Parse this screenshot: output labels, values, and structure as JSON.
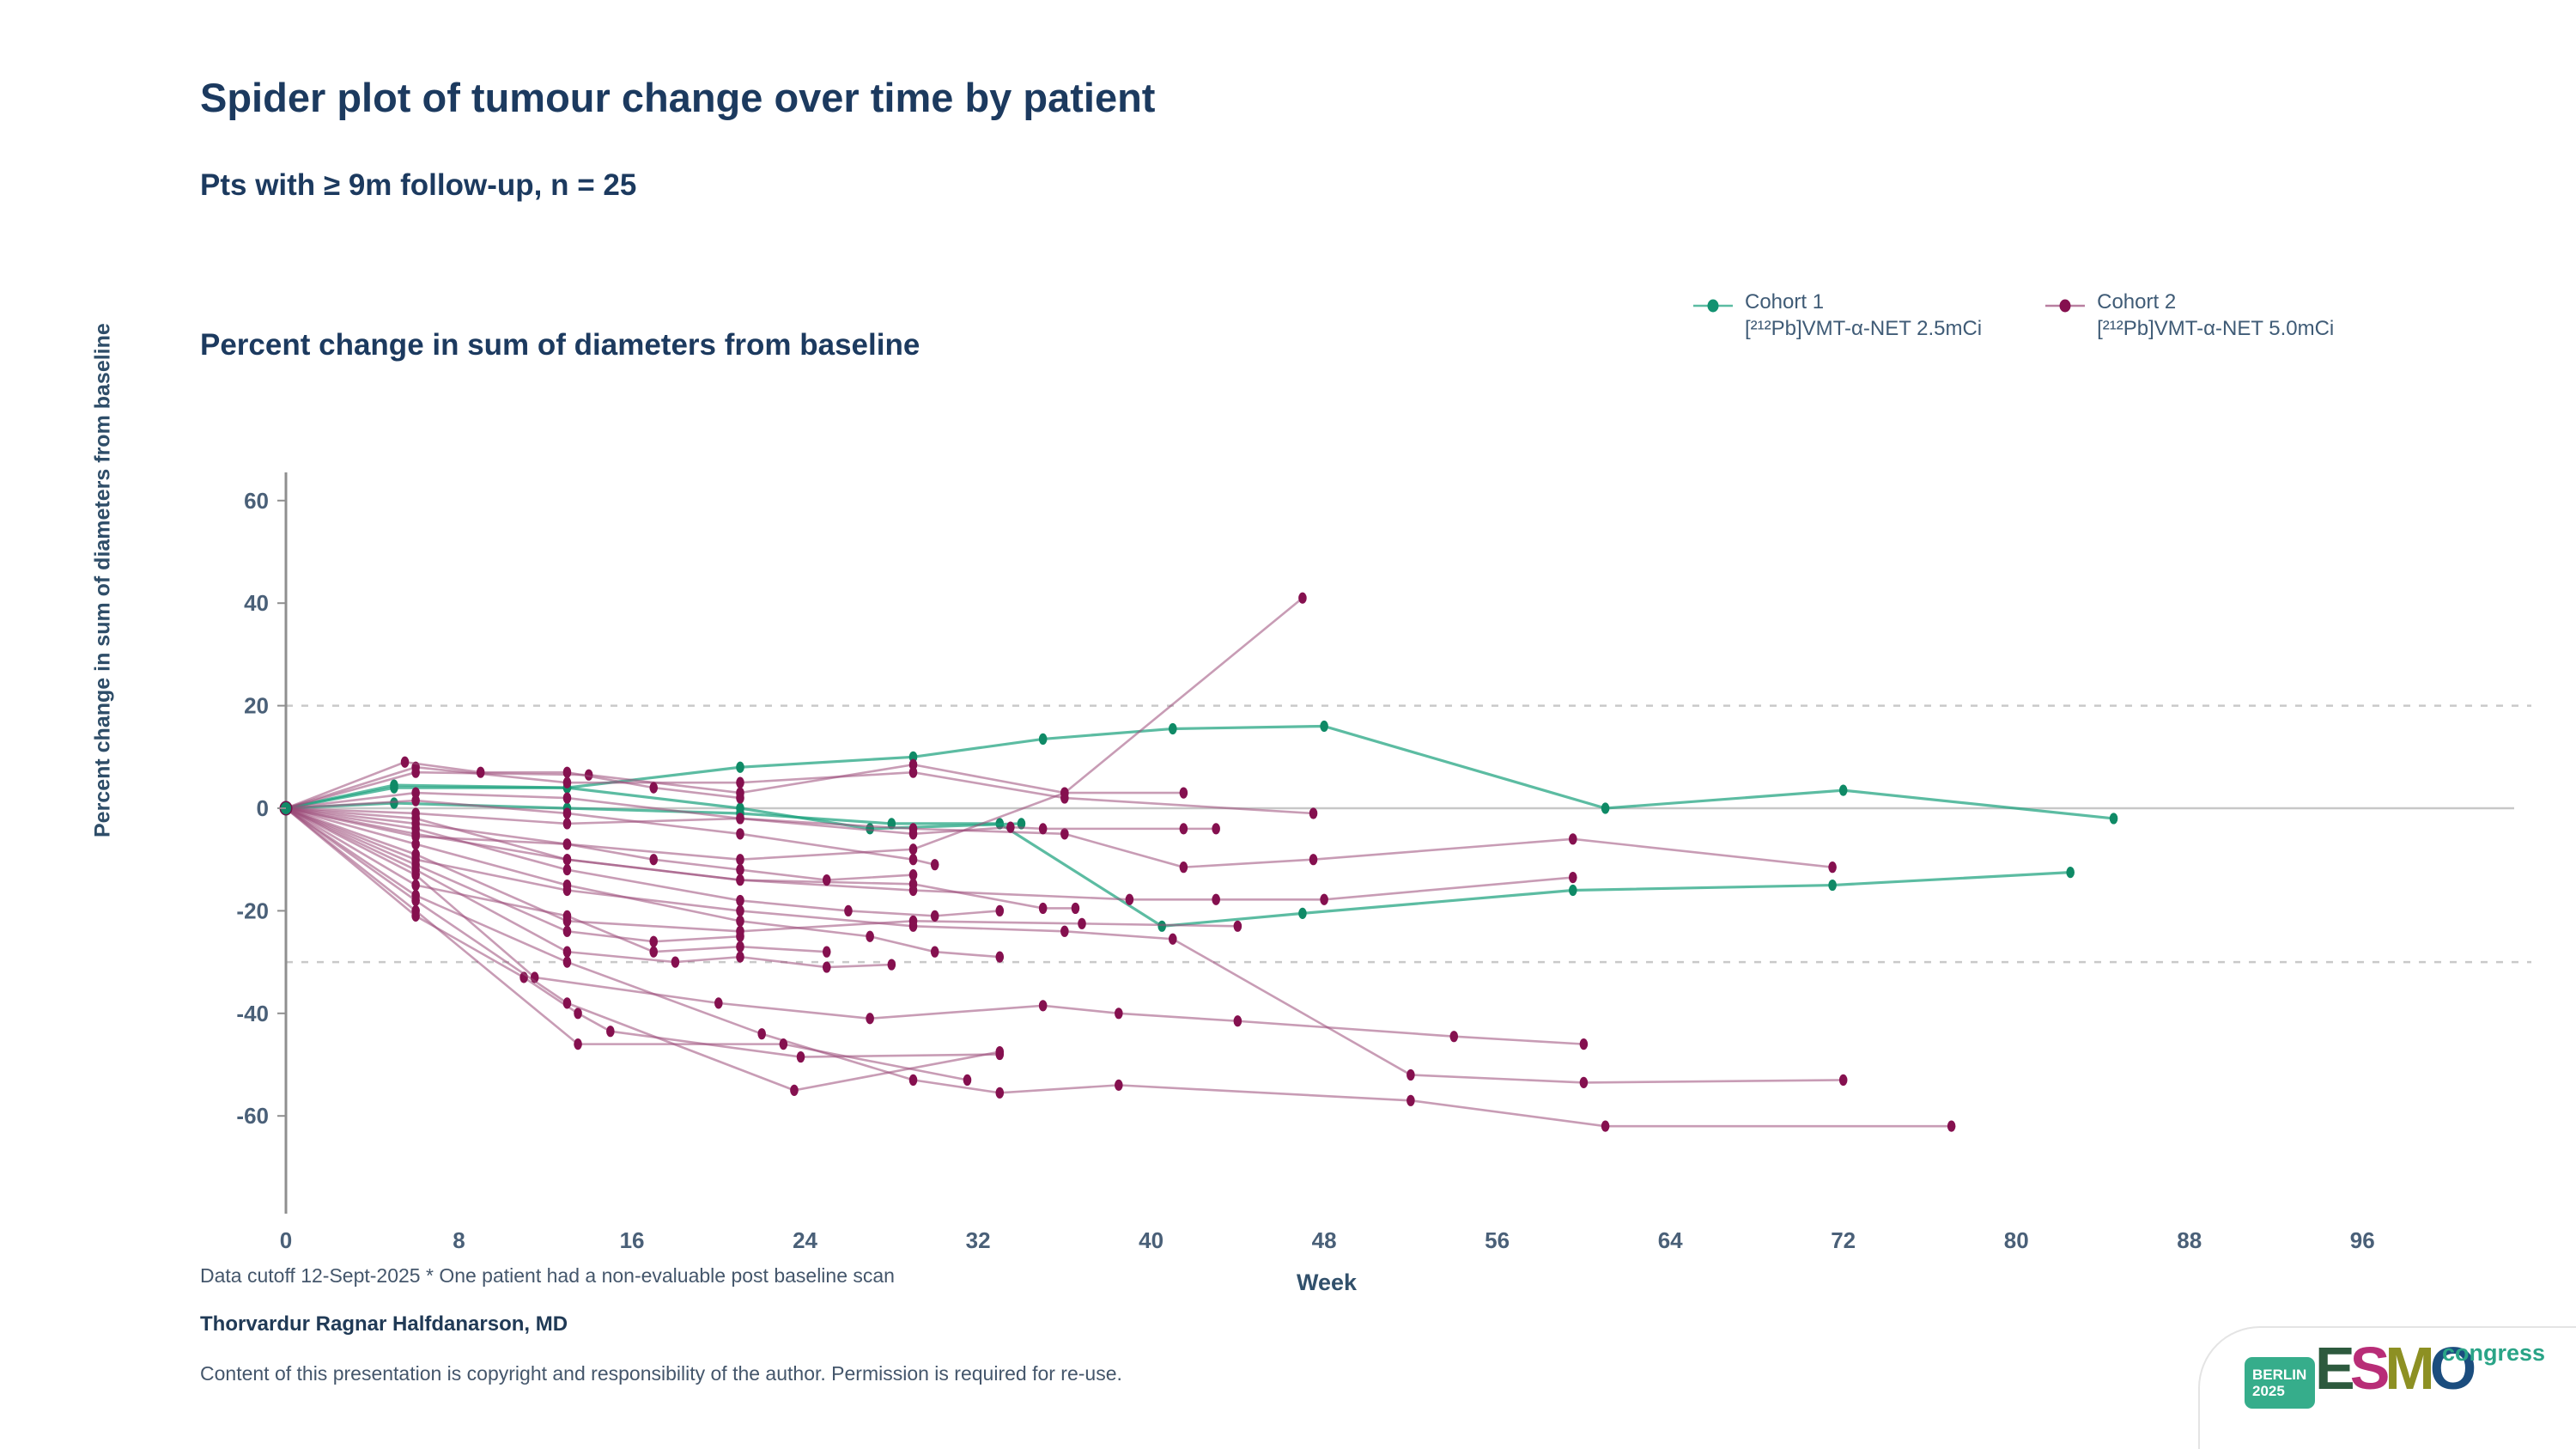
{
  "slide": {
    "title": "Spider plot of tumour change over time by patient",
    "subtitle": "Pts with ≥ 9m follow-up, n = 25",
    "chart_heading": "Percent change in sum of diameters from baseline",
    "footnote": "Data cutoff 12-Sept-2025 * One patient had a non-evaluable post baseline scan",
    "author": "Thorvardur Ragnar Halfdanarson, MD",
    "copyright": "Content of this presentation is copyright and responsibility of the author. Permission is required for re-use."
  },
  "legend": {
    "items": [
      {
        "name": "Cohort 1",
        "treatment": "[²¹²Pb]VMT-α-NET 2.5mCi",
        "color": "#16a07b"
      },
      {
        "name": "Cohort 2",
        "treatment": "[²¹²Pb]VMT-α-NET 5.0mCi",
        "color": "#8b1253"
      }
    ]
  },
  "logo": {
    "venue": "BERLIN",
    "year": "2025",
    "org": "ESMO",
    "letter_colors": [
      "#2d5a3e",
      "#b82d77",
      "#8d9023",
      "#1b4d7e"
    ],
    "suffix": "congress"
  },
  "chart_data": {
    "type": "line",
    "variant": "spider-plot",
    "title": "Percent change in sum of diameters from baseline",
    "xlabel": "Week",
    "ylabel": "Percent change in sum of diameters from baseline",
    "xlim": [
      0,
      98
    ],
    "ylim": [
      -75,
      65
    ],
    "xticks": [
      0,
      8,
      16,
      24,
      32,
      40,
      48,
      56,
      64,
      72,
      80,
      88,
      96
    ],
    "yticks": [
      60,
      40,
      20,
      0,
      -20,
      -40,
      -60
    ],
    "grid": "threshold-dashes-only",
    "thresholds": [
      20,
      -30
    ],
    "zero_line": 0,
    "legend_position": "top-right",
    "colors": {
      "cohort1_line": "#17a07b",
      "cohort1_point": "#0f8a66",
      "cohort2_line": "#9b4a79",
      "cohort2_point": "#85104f"
    },
    "series": [
      {
        "id": "C1-P1",
        "cohort": 1,
        "points": [
          [
            0,
            0
          ],
          [
            5,
            4
          ],
          [
            13,
            4
          ],
          [
            21,
            8
          ],
          [
            29,
            10
          ],
          [
            35,
            13.5
          ],
          [
            41,
            15.5
          ],
          [
            48,
            16
          ],
          [
            61,
            0
          ],
          [
            72,
            3.5
          ],
          [
            84.5,
            -2
          ]
        ]
      },
      {
        "id": "C1-P2",
        "cohort": 1,
        "points": [
          [
            0,
            0
          ],
          [
            5,
            1
          ],
          [
            13,
            0
          ],
          [
            21,
            -1
          ],
          [
            28,
            -3
          ],
          [
            33,
            -3
          ],
          [
            40.5,
            -23
          ],
          [
            47,
            -20.5
          ],
          [
            59.5,
            -16
          ],
          [
            71.5,
            -15
          ],
          [
            82.5,
            -12.5
          ]
        ]
      },
      {
        "id": "C1-P3",
        "cohort": 1,
        "points": [
          [
            0,
            0
          ],
          [
            5,
            4.5
          ],
          [
            13,
            4
          ],
          [
            21,
            0
          ],
          [
            27,
            -4
          ],
          [
            34,
            -3
          ]
        ]
      },
      {
        "id": "C2-P1",
        "cohort": 2,
        "points": [
          [
            0,
            0
          ],
          [
            6,
            -3
          ],
          [
            13,
            -7
          ],
          [
            21,
            -10
          ],
          [
            29,
            -8
          ],
          [
            36,
            3
          ],
          [
            47,
            41
          ]
        ]
      },
      {
        "id": "C2-P2",
        "cohort": 2,
        "points": [
          [
            0,
            0
          ],
          [
            6,
            7
          ],
          [
            14,
            6.5
          ],
          [
            21,
            3
          ],
          [
            29,
            8.5
          ],
          [
            36,
            3
          ],
          [
            41.5,
            3
          ]
        ]
      },
      {
        "id": "C2-P3",
        "cohort": 2,
        "points": [
          [
            0,
            0
          ],
          [
            6,
            8
          ],
          [
            13,
            5
          ],
          [
            21,
            5
          ],
          [
            29,
            7
          ],
          [
            36,
            2
          ],
          [
            47.5,
            -1
          ]
        ]
      },
      {
        "id": "C2-P4",
        "cohort": 2,
        "points": [
          [
            0,
            0
          ],
          [
            6,
            -1
          ],
          [
            13,
            -3
          ],
          [
            21,
            -2
          ],
          [
            29,
            -4
          ],
          [
            36,
            -5
          ],
          [
            41.5,
            -11.5
          ],
          [
            47.5,
            -10
          ],
          [
            59.5,
            -6
          ],
          [
            71.5,
            -11.5
          ]
        ]
      },
      {
        "id": "C2-P5",
        "cohort": 2,
        "points": [
          [
            0,
            0
          ],
          [
            6,
            -5
          ],
          [
            13,
            -10
          ],
          [
            21,
            -14
          ],
          [
            29,
            -16
          ],
          [
            39,
            -17.8
          ],
          [
            43,
            -17.8
          ],
          [
            48,
            -17.8
          ],
          [
            59.5,
            -13.5
          ]
        ]
      },
      {
        "id": "C2-P6",
        "cohort": 2,
        "points": [
          [
            0,
            0
          ],
          [
            6,
            -13
          ],
          [
            11.5,
            -33
          ],
          [
            20,
            -38
          ],
          [
            27,
            -41
          ],
          [
            35,
            -38.5
          ],
          [
            38.5,
            -40
          ],
          [
            44,
            -41.5
          ],
          [
            54,
            -44.5
          ],
          [
            60,
            -46
          ]
        ]
      },
      {
        "id": "C2-P7",
        "cohort": 2,
        "points": [
          [
            0,
            0
          ],
          [
            6,
            -17
          ],
          [
            13,
            -30
          ],
          [
            22,
            -44
          ],
          [
            29,
            -53
          ],
          [
            33,
            -55.5
          ],
          [
            38.5,
            -54
          ],
          [
            52,
            -57
          ],
          [
            61,
            -62
          ],
          [
            77,
            -62
          ]
        ]
      },
      {
        "id": "C2-P8",
        "cohort": 2,
        "points": [
          [
            0,
            0
          ],
          [
            6,
            -10
          ],
          [
            13,
            -16
          ],
          [
            21,
            -20
          ],
          [
            29,
            -23
          ],
          [
            36,
            -24
          ],
          [
            41,
            -25.5
          ],
          [
            52,
            -52
          ],
          [
            60,
            -53.5
          ],
          [
            72,
            -53
          ]
        ]
      },
      {
        "id": "C2-P9",
        "cohort": 2,
        "points": [
          [
            0,
            0
          ],
          [
            6,
            -21
          ],
          [
            11,
            -33
          ],
          [
            13.5,
            -40
          ],
          [
            15,
            -43.5
          ],
          [
            23.8,
            -48.5
          ],
          [
            33,
            -48
          ]
        ]
      },
      {
        "id": "C2-P10",
        "cohort": 2,
        "points": [
          [
            0,
            0
          ],
          [
            6,
            -20
          ],
          [
            13.5,
            -46
          ],
          [
            23,
            -46
          ],
          [
            31.5,
            -53
          ]
        ]
      },
      {
        "id": "C2-P11",
        "cohort": 2,
        "points": [
          [
            0,
            0
          ],
          [
            6,
            -18
          ],
          [
            13,
            -38
          ],
          [
            23.5,
            -55
          ],
          [
            33,
            -47.5
          ]
        ]
      },
      {
        "id": "C2-P12",
        "cohort": 2,
        "points": [
          [
            0,
            0
          ],
          [
            6,
            -9
          ],
          [
            13,
            -22
          ],
          [
            21,
            -24
          ],
          [
            29,
            -22
          ],
          [
            36.8,
            -22.5
          ],
          [
            44,
            -23
          ]
        ]
      },
      {
        "id": "C2-P13",
        "cohort": 2,
        "points": [
          [
            0,
            0
          ],
          [
            6,
            -2
          ],
          [
            13,
            -10
          ],
          [
            21,
            -14
          ],
          [
            29,
            -14.8
          ],
          [
            35,
            -19.5
          ],
          [
            36.5,
            -19.5
          ]
        ]
      },
      {
        "id": "C2-P14",
        "cohort": 2,
        "points": [
          [
            0,
            0
          ],
          [
            6,
            3
          ],
          [
            13,
            2
          ],
          [
            21,
            -2
          ],
          [
            29,
            -5
          ],
          [
            33.5,
            -3.7
          ],
          [
            35,
            -4
          ],
          [
            41.5,
            -4
          ],
          [
            43,
            -4
          ]
        ]
      },
      {
        "id": "C2-P15",
        "cohort": 2,
        "points": [
          [
            0,
            0
          ],
          [
            6,
            -4
          ],
          [
            13,
            -12
          ],
          [
            21,
            -18
          ],
          [
            26,
            -20
          ],
          [
            30,
            -21
          ],
          [
            33,
            -20
          ]
        ]
      },
      {
        "id": "C2-P16",
        "cohort": 2,
        "points": [
          [
            0,
            0
          ],
          [
            6,
            -7
          ],
          [
            13,
            -15
          ],
          [
            21,
            -22
          ],
          [
            27,
            -25
          ],
          [
            30,
            -28
          ],
          [
            33,
            -29
          ]
        ]
      },
      {
        "id": "C2-P17",
        "cohort": 2,
        "points": [
          [
            0,
            0
          ],
          [
            6,
            -12
          ],
          [
            13,
            -28
          ],
          [
            18,
            -30
          ],
          [
            21,
            -29
          ],
          [
            25,
            -31
          ],
          [
            28,
            -30.5
          ]
        ]
      },
      {
        "id": "C2-P18",
        "cohort": 2,
        "points": [
          [
            0,
            0
          ],
          [
            6,
            1.5
          ],
          [
            13,
            -1
          ],
          [
            21,
            -5
          ],
          [
            29,
            -10
          ],
          [
            30,
            -11
          ]
        ]
      },
      {
        "id": "C2-P19",
        "cohort": 2,
        "points": [
          [
            0,
            0
          ],
          [
            6,
            -15
          ],
          [
            13,
            -21
          ],
          [
            17,
            -28
          ],
          [
            21,
            -27
          ],
          [
            25,
            -28
          ]
        ]
      },
      {
        "id": "C2-P20",
        "cohort": 2,
        "points": [
          [
            0,
            0
          ],
          [
            6,
            -5.5
          ],
          [
            13,
            -7
          ],
          [
            17,
            -10
          ],
          [
            21,
            -12
          ],
          [
            25,
            -14
          ],
          [
            29,
            -13
          ]
        ]
      },
      {
        "id": "C2-P21",
        "cohort": 2,
        "points": [
          [
            0,
            0
          ],
          [
            5.5,
            9
          ],
          [
            9,
            7
          ],
          [
            13,
            7
          ],
          [
            17,
            4
          ],
          [
            21,
            2
          ]
        ]
      },
      {
        "id": "C2-P22",
        "cohort": 2,
        "points": [
          [
            0,
            0
          ],
          [
            6,
            -11
          ],
          [
            13,
            -24
          ],
          [
            17,
            -26
          ],
          [
            21,
            -25
          ]
        ]
      }
    ]
  }
}
